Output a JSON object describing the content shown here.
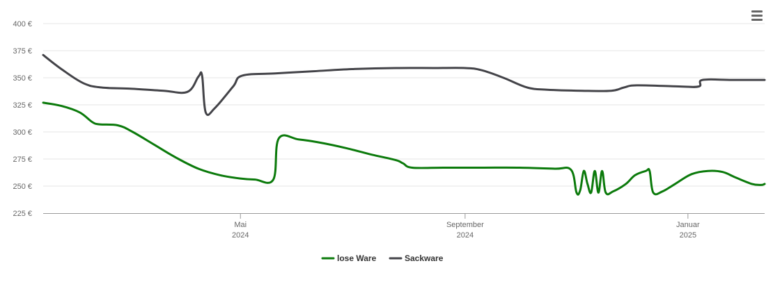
{
  "chart_data": {
    "type": "line",
    "title": "",
    "xlabel": "",
    "ylabel": "",
    "ylim": [
      225,
      400
    ],
    "y_ticks": [
      "225 €",
      "250 €",
      "275 €",
      "300 €",
      "325 €",
      "350 €",
      "375 €",
      "400 €"
    ],
    "y_tick_values": [
      225,
      250,
      275,
      300,
      325,
      350,
      375,
      400
    ],
    "x_range": [
      "2024-01-14",
      "2025-02-12"
    ],
    "x_ticks": [
      {
        "date": "2024-05-01",
        "label": "Mai",
        "year": "2024"
      },
      {
        "date": "2024-09-01",
        "label": "September",
        "year": "2024"
      },
      {
        "date": "2025-01-01",
        "label": "Januar",
        "year": "2025"
      }
    ],
    "grid": true,
    "legend_position": "bottom",
    "series": [
      {
        "name": "lose Ware",
        "color": "#0b7a0b",
        "points": [
          [
            "2024-01-14",
            327
          ],
          [
            "2024-01-24",
            324
          ],
          [
            "2024-02-03",
            318
          ],
          [
            "2024-02-10",
            309
          ],
          [
            "2024-02-14",
            307
          ],
          [
            "2024-02-24",
            306
          ],
          [
            "2024-03-03",
            300
          ],
          [
            "2024-03-15",
            288
          ],
          [
            "2024-03-27",
            276
          ],
          [
            "2024-04-08",
            266
          ],
          [
            "2024-04-20",
            260
          ],
          [
            "2024-05-01",
            257
          ],
          [
            "2024-05-09",
            256
          ],
          [
            "2024-05-19",
            256
          ],
          [
            "2024-05-22",
            294
          ],
          [
            "2024-06-02",
            293
          ],
          [
            "2024-06-14",
            290
          ],
          [
            "2024-06-28",
            285
          ],
          [
            "2024-07-12",
            279
          ],
          [
            "2024-07-25",
            274
          ],
          [
            "2024-07-29",
            271
          ],
          [
            "2024-08-03",
            267
          ],
          [
            "2024-08-20",
            267
          ],
          [
            "2024-09-10",
            267
          ],
          [
            "2024-10-01",
            267
          ],
          [
            "2024-10-20",
            266
          ],
          [
            "2024-10-29",
            265
          ],
          [
            "2024-11-01",
            244
          ],
          [
            "2024-11-03",
            246
          ],
          [
            "2024-11-05",
            264
          ],
          [
            "2024-11-07",
            252
          ],
          [
            "2024-11-09",
            244
          ],
          [
            "2024-11-11",
            264
          ],
          [
            "2024-11-13",
            244
          ],
          [
            "2024-11-15",
            264
          ],
          [
            "2024-11-17",
            244
          ],
          [
            "2024-11-21",
            245
          ],
          [
            "2024-11-28",
            252
          ],
          [
            "2024-12-03",
            260
          ],
          [
            "2024-12-09",
            264
          ],
          [
            "2024-12-11",
            264
          ],
          [
            "2024-12-13",
            244
          ],
          [
            "2024-12-18",
            245
          ],
          [
            "2024-12-25",
            252
          ],
          [
            "2025-01-03",
            261
          ],
          [
            "2025-01-12",
            264
          ],
          [
            "2025-01-20",
            263
          ],
          [
            "2025-01-27",
            258
          ],
          [
            "2025-02-05",
            252
          ],
          [
            "2025-02-10",
            251
          ],
          [
            "2025-02-12",
            252
          ]
        ]
      },
      {
        "name": "Sackware",
        "color": "#434348",
        "points": [
          [
            "2024-01-14",
            371
          ],
          [
            "2024-01-24",
            358
          ],
          [
            "2024-02-05",
            345
          ],
          [
            "2024-02-15",
            341
          ],
          [
            "2024-03-01",
            340
          ],
          [
            "2024-03-20",
            338
          ],
          [
            "2024-04-02",
            337
          ],
          [
            "2024-04-08",
            351
          ],
          [
            "2024-04-10",
            352
          ],
          [
            "2024-04-12",
            318
          ],
          [
            "2024-04-17",
            322
          ],
          [
            "2024-04-27",
            342
          ],
          [
            "2024-05-02",
            352
          ],
          [
            "2024-05-20",
            354
          ],
          [
            "2024-06-10",
            356
          ],
          [
            "2024-07-01",
            358
          ],
          [
            "2024-07-25",
            359
          ],
          [
            "2024-08-15",
            359
          ],
          [
            "2024-09-01",
            359
          ],
          [
            "2024-09-10",
            357
          ],
          [
            "2024-09-22",
            350
          ],
          [
            "2024-10-05",
            341
          ],
          [
            "2024-10-16",
            339
          ],
          [
            "2024-11-04",
            338
          ],
          [
            "2024-11-20",
            338
          ],
          [
            "2024-11-27",
            341
          ],
          [
            "2024-12-04",
            343
          ],
          [
            "2024-12-27",
            342
          ],
          [
            "2025-01-07",
            342
          ],
          [
            "2025-01-09",
            348
          ],
          [
            "2025-01-25",
            348
          ],
          [
            "2025-02-12",
            348
          ]
        ]
      }
    ]
  },
  "menu": {
    "icon": "hamburger-menu-icon"
  }
}
